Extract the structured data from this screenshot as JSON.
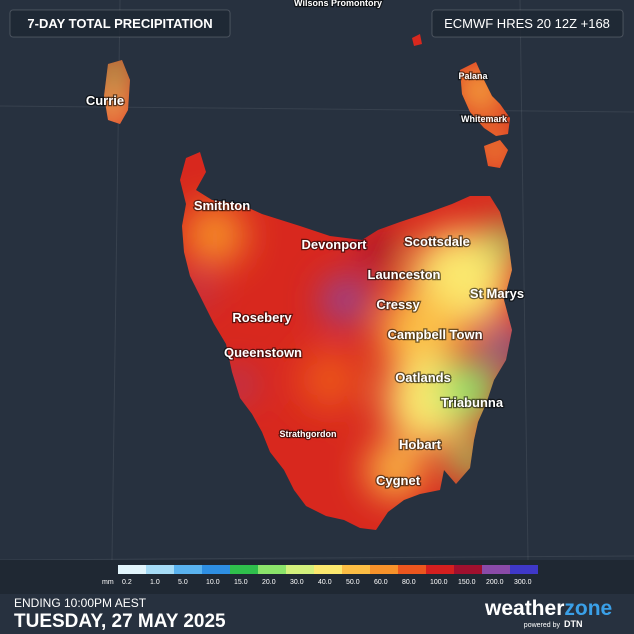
{
  "header": {
    "title": "7-DAY TOTAL PRECIPITATION",
    "model": "ECMWF HRES 20 12Z +168"
  },
  "places": [
    "Wilsons Promontory",
    "Currie",
    "Palana",
    "Whitemark",
    "Smithton",
    "Devonport",
    "Scottsdale",
    "Launceston",
    "St Marys",
    "Cressy",
    "Rosebery",
    "Campbell Town",
    "Queenstown",
    "Oatlands",
    "Triabunna",
    "Strathgordon",
    "Hobart",
    "Cygnet"
  ],
  "legend": {
    "unit": "mm",
    "labels": [
      "0.2",
      "1.0",
      "5.0",
      "10.0",
      "15.0",
      "20.0",
      "30.0",
      "40.0",
      "50.0",
      "60.0",
      "80.0",
      "100.0",
      "150.0",
      "200.0",
      "300.0"
    ],
    "colors": [
      "#e2f5fc",
      "#a6dcf6",
      "#5ab3ef",
      "#2e8fe3",
      "#2fbf4c",
      "#8be36a",
      "#d3f07c",
      "#fbe86e",
      "#fbbd44",
      "#f7922a",
      "#ec561e",
      "#d41f1f",
      "#a0102e",
      "#8a4aa8",
      "#3f38c8"
    ]
  },
  "footer": {
    "ending": "ENDING 10:00PM AEST",
    "date": "TUESDAY, 27 MAY 2025"
  },
  "brand": {
    "word": "weather",
    "accent": "zone",
    "tagline": "powered by",
    "partner": "DTN"
  }
}
